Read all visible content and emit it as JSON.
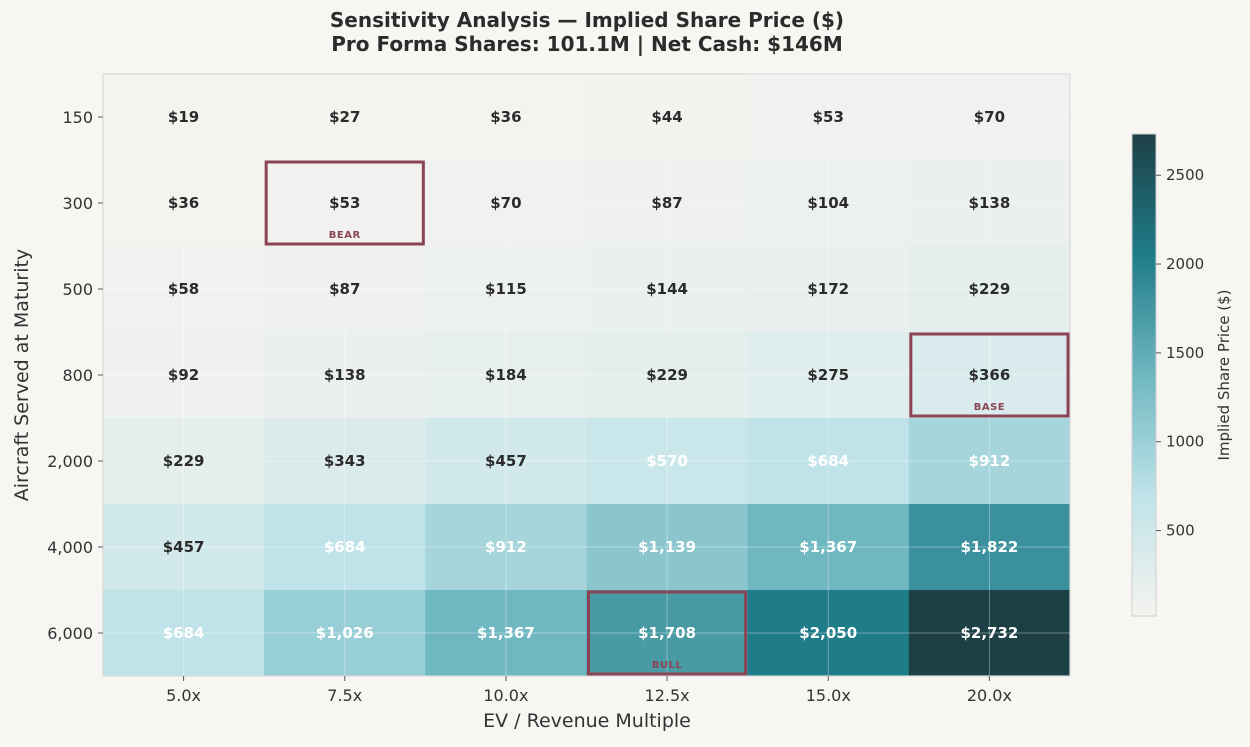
{
  "chart_data": {
    "type": "heatmap",
    "title": "Sensitivity Analysis — Implied Share Price ($)",
    "subtitle": "Pro Forma Shares: 101.1M | Net Cash: $146M",
    "xlabel": "EV / Revenue Multiple",
    "ylabel": "Aircraft Served at Maturity",
    "x_categories": [
      "5.0x",
      "7.5x",
      "10.0x",
      "12.5x",
      "15.0x",
      "20.0x"
    ],
    "y_categories": [
      "150",
      "300",
      "500",
      "800",
      "2,000",
      "4,000",
      "6,000"
    ],
    "values": [
      [
        19,
        27,
        36,
        44,
        53,
        70
      ],
      [
        36,
        53,
        70,
        87,
        104,
        138
      ],
      [
        58,
        87,
        115,
        144,
        172,
        229
      ],
      [
        92,
        138,
        184,
        229,
        275,
        366
      ],
      [
        229,
        343,
        457,
        570,
        684,
        912
      ],
      [
        457,
        684,
        912,
        1139,
        1367,
        1822
      ],
      [
        684,
        1026,
        1367,
        1708,
        2050,
        2732
      ]
    ],
    "cell_labels": [
      [
        "$19",
        "$27",
        "$36",
        "$44",
        "$53",
        "$70"
      ],
      [
        "$36",
        "$53",
        "$70",
        "$87",
        "$104",
        "$138"
      ],
      [
        "$58",
        "$87",
        "$115",
        "$144",
        "$172",
        "$229"
      ],
      [
        "$92",
        "$138",
        "$184",
        "$229",
        "$275",
        "$366"
      ],
      [
        "$229",
        "$343",
        "$457",
        "$570",
        "$684",
        "$912"
      ],
      [
        "$457",
        "$684",
        "$912",
        "$1,139",
        "$1,367",
        "$1,822"
      ],
      [
        "$684",
        "$1,026",
        "$1,367",
        "$1,708",
        "$2,050",
        "$2,732"
      ]
    ],
    "scenarios": [
      {
        "label": "BEAR",
        "row": 1,
        "col": 1
      },
      {
        "label": "BASE",
        "row": 3,
        "col": 5
      },
      {
        "label": "BULL",
        "row": 6,
        "col": 3
      }
    ],
    "colorbar": {
      "label": "Implied Share Price ($)",
      "range": [
        19,
        2732
      ],
      "ticks": [
        500,
        1000,
        1500,
        2000,
        2500
      ],
      "colors": [
        "#f4f3ef",
        "#bfe3e9",
        "#6fb7c0",
        "#1f7c89",
        "#1d3f46"
      ]
    },
    "highlight_color": "#8c4455",
    "grid": true
  }
}
